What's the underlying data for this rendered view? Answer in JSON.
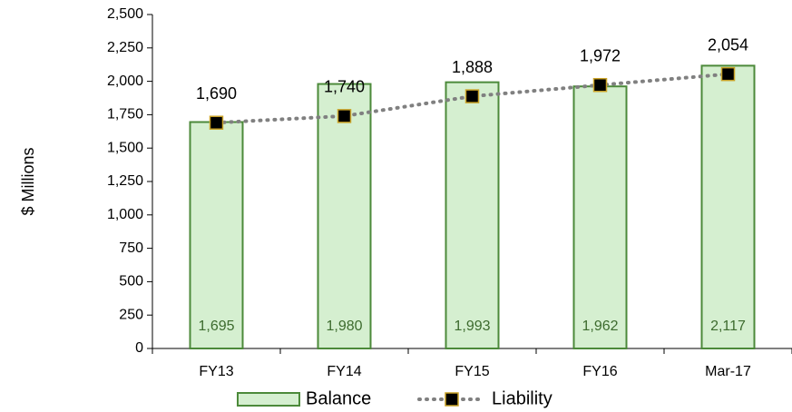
{
  "chart_data": {
    "type": "combo",
    "y_label": "$ Millions",
    "categories": [
      "FY13",
      "FY14",
      "FY15",
      "FY16",
      "Mar-17"
    ],
    "series": [
      {
        "name": "Balance",
        "type": "bar",
        "color": "#d5efd0",
        "edge_color": "#4c8a3a",
        "label_color": "#3d6b2e",
        "values": [
          1695,
          1980,
          1993,
          1962,
          2117
        ],
        "value_labels": [
          "1,695",
          "1,980",
          "1,993",
          "1,962",
          "2,117"
        ]
      },
      {
        "name": "Liability",
        "type": "line",
        "color": "#808080",
        "marker_color": "#000000",
        "marker_edge": "#c9a227",
        "values": [
          1690,
          1740,
          1888,
          1972,
          2054
        ],
        "value_labels": [
          "1,690",
          "1,740",
          "1,888",
          "1,972",
          "2,054"
        ]
      }
    ],
    "ylim": [
      0,
      2500
    ],
    "yticks": [
      0,
      250,
      500,
      750,
      {
        "value": 1000,
        "label": "1,000"
      },
      {
        "value": 1250,
        "label": "1,250"
      },
      {
        "value": 1500,
        "label": "1,500"
      },
      {
        "value": 1750,
        "label": "1,750"
      },
      {
        "value": 2000,
        "label": "2,000"
      },
      {
        "value": 2250,
        "label": "2,250"
      },
      {
        "value": 2500,
        "label": "2,500"
      }
    ],
    "legend": "bottom"
  }
}
